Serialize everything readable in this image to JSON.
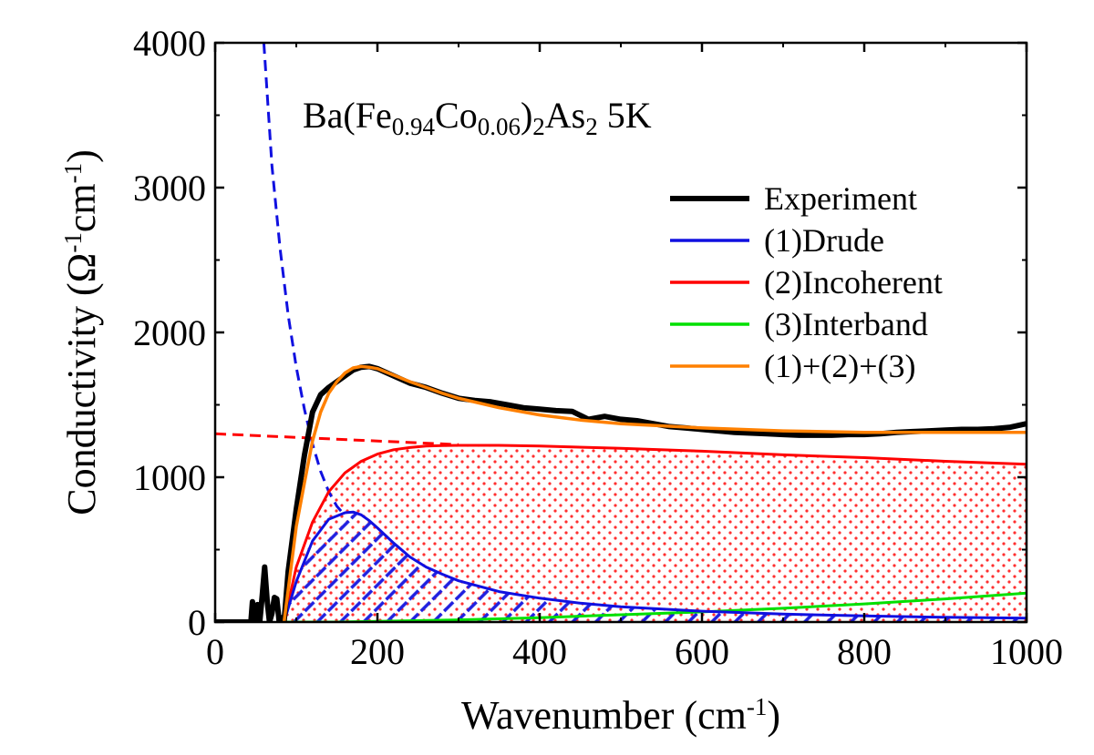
{
  "chart_data": {
    "type": "line",
    "annotation": {
      "parts": [
        {
          "text": "Ba(Fe",
          "sub": false
        },
        {
          "text": "0.94",
          "sub": true
        },
        {
          "text": "Co",
          "sub": false
        },
        {
          "text": "0.06",
          "sub": true
        },
        {
          "text": ")",
          "sub": false
        },
        {
          "text": "2",
          "sub": true
        },
        {
          "text": "As",
          "sub": false
        },
        {
          "text": "2",
          "sub": true
        },
        {
          "text": "  5K",
          "sub": false
        }
      ]
    },
    "xlabel": {
      "main": "Wavenumber (cm",
      "sup": "-1",
      "end": ")"
    },
    "ylabel": {
      "p1": "Conductivity (Ω",
      "sup1": "-1",
      "p2": "cm",
      "sup2": "-1",
      "p3": ")"
    },
    "xlim": [
      0,
      1000
    ],
    "ylim": [
      0,
      4000
    ],
    "xticks": [
      0,
      200,
      400,
      600,
      800,
      1000
    ],
    "yticks": [
      0,
      1000,
      2000,
      3000,
      4000
    ],
    "xtick_labels": [
      "0",
      "200",
      "400",
      "600",
      "800",
      "1000"
    ],
    "ytick_labels": [
      "0",
      "1000",
      "2000",
      "3000",
      "4000"
    ],
    "legend_position": "upper-right",
    "series": [
      {
        "name": "Experiment",
        "color": "#000000",
        "x": [
          0,
          44,
          46,
          49,
          52,
          55,
          58,
          61,
          64,
          67,
          70,
          73,
          76,
          79,
          82,
          85,
          90,
          100,
          110,
          120,
          130,
          140,
          150,
          160,
          170,
          180,
          190,
          200,
          220,
          240,
          260,
          280,
          300,
          320,
          340,
          360,
          380,
          400,
          420,
          440,
          460,
          480,
          500,
          520,
          540,
          560,
          580,
          600,
          620,
          640,
          660,
          680,
          700,
          720,
          740,
          760,
          780,
          800,
          820,
          840,
          860,
          880,
          900,
          920,
          940,
          960,
          980,
          1000
        ],
        "y": [
          0,
          0,
          140,
          0,
          120,
          0,
          180,
          380,
          150,
          0,
          60,
          170,
          160,
          0,
          30,
          0,
          350,
          780,
          1150,
          1450,
          1570,
          1620,
          1660,
          1700,
          1740,
          1760,
          1765,
          1750,
          1700,
          1650,
          1620,
          1580,
          1545,
          1530,
          1520,
          1500,
          1480,
          1470,
          1460,
          1455,
          1400,
          1420,
          1400,
          1390,
          1370,
          1350,
          1340,
          1330,
          1320,
          1310,
          1305,
          1300,
          1295,
          1290,
          1290,
          1290,
          1295,
          1295,
          1300,
          1310,
          1315,
          1320,
          1325,
          1330,
          1330,
          1335,
          1345,
          1370
        ]
      },
      {
        "name": "(1)Drude",
        "color": "#1010e0",
        "x": [
          85,
          100,
          120,
          140,
          160,
          170,
          180,
          190,
          200,
          220,
          240,
          260,
          280,
          300,
          350,
          400,
          450,
          500,
          600,
          700,
          800,
          900,
          1000
        ],
        "y": [
          0,
          280,
          560,
          710,
          755,
          760,
          740,
          700,
          650,
          545,
          450,
          380,
          330,
          285,
          210,
          165,
          130,
          105,
          75,
          55,
          42,
          33,
          27
        ]
      },
      {
        "name": "(2)Incoherent",
        "color": "#ff0000",
        "x": [
          85,
          100,
          120,
          140,
          160,
          180,
          200,
          220,
          240,
          260,
          280,
          300,
          350,
          400,
          500,
          600,
          700,
          800,
          900,
          1000
        ],
        "y": [
          0,
          380,
          690,
          900,
          1030,
          1110,
          1160,
          1190,
          1205,
          1215,
          1218,
          1220,
          1220,
          1215,
          1200,
          1180,
          1155,
          1135,
          1110,
          1090
        ]
      },
      {
        "name": "(3)Interband",
        "color": "#00e000",
        "x": [
          85,
          150,
          200,
          300,
          400,
          500,
          600,
          700,
          800,
          900,
          1000
        ],
        "y": [
          0,
          0,
          5,
          15,
          30,
          50,
          70,
          95,
          125,
          160,
          200
        ]
      },
      {
        "name": "(1)+(2)+(3)",
        "color": "#ff8000",
        "x": [
          85,
          100,
          110,
          120,
          130,
          140,
          150,
          160,
          170,
          180,
          190,
          200,
          220,
          240,
          260,
          280,
          300,
          350,
          400,
          450,
          500,
          600,
          700,
          800,
          900,
          1000
        ],
        "y": [
          0,
          660,
          960,
          1250,
          1450,
          1580,
          1660,
          1720,
          1755,
          1765,
          1760,
          1750,
          1705,
          1660,
          1620,
          1580,
          1545,
          1480,
          1430,
          1395,
          1370,
          1340,
          1320,
          1310,
          1310,
          1310
        ]
      }
    ],
    "extrapolations": [
      {
        "color": "#1010e0",
        "style": "dashed",
        "x": [
          60,
          70,
          80,
          90,
          100,
          110,
          120,
          130,
          140,
          150,
          160
        ],
        "y": [
          4000,
          3150,
          2580,
          2120,
          1760,
          1470,
          1230,
          1040,
          900,
          800,
          735
        ]
      },
      {
        "color": "#ff0000",
        "style": "dashed",
        "x": [
          0,
          300
        ],
        "y": [
          1300,
          1225
        ]
      }
    ],
    "fills": [
      {
        "under": "(2)Incoherent",
        "pattern": "red-dots"
      },
      {
        "under": "(1)Drude",
        "pattern": "blue-hatch"
      }
    ]
  }
}
